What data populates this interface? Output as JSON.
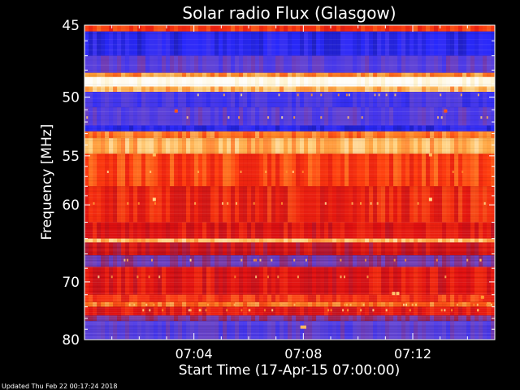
{
  "chart_data": {
    "type": "heatmap",
    "title": "Solar radio Flux (Glasgow)",
    "xlabel": "Start Time (17-Apr-15 07:00:00)",
    "ylabel": "Frequency [MHz]",
    "x_ticks": [
      "07:04",
      "07:08",
      "07:12"
    ],
    "x_tick_minutes": [
      4,
      8,
      12
    ],
    "x_range_minutes": [
      0,
      15
    ],
    "y_ticks": [
      45,
      50,
      55,
      60,
      70,
      80
    ],
    "y_range": [
      45,
      80
    ],
    "y_scale": "reciprocal",
    "grid": false,
    "colormap": [
      "#10106a",
      "#2a2aff",
      "#6a4ad0",
      "#b01020",
      "#e01010",
      "#ff4010",
      "#ff9a30",
      "#ffe8a0",
      "#ffffff"
    ],
    "bands": [
      {
        "mhz": [
          45.0,
          45.4
        ],
        "level": 0.6
      },
      {
        "mhz": [
          45.4,
          47.0
        ],
        "level": 0.12
      },
      {
        "mhz": [
          47.0,
          48.2
        ],
        "level": 0.22
      },
      {
        "mhz": [
          48.2,
          48.5
        ],
        "level": 0.75
      },
      {
        "mhz": [
          48.5,
          49.2
        ],
        "level": 0.98
      },
      {
        "mhz": [
          49.2,
          49.6
        ],
        "level": 0.8
      },
      {
        "mhz": [
          49.6,
          50.8
        ],
        "level": 0.18
      },
      {
        "mhz": [
          50.8,
          52.3
        ],
        "level": 0.22
      },
      {
        "mhz": [
          52.3,
          52.8
        ],
        "level": 0.12
      },
      {
        "mhz": [
          52.8,
          53.4
        ],
        "level": 0.7
      },
      {
        "mhz": [
          53.4,
          54.8
        ],
        "level": 0.8
      },
      {
        "mhz": [
          54.8,
          58.0
        ],
        "level": 0.62
      },
      {
        "mhz": [
          58.0,
          62.0
        ],
        "level": 0.55
      },
      {
        "mhz": [
          62.0,
          64.0
        ],
        "level": 0.5
      },
      {
        "mhz": [
          64.0,
          64.5
        ],
        "level": 0.8
      },
      {
        "mhz": [
          64.5,
          66.2
        ],
        "level": 0.45
      },
      {
        "mhz": [
          66.2,
          67.8
        ],
        "level": 0.28
      },
      {
        "mhz": [
          67.8,
          72.0
        ],
        "level": 0.5
      },
      {
        "mhz": [
          72.0,
          73.2
        ],
        "level": 0.58
      },
      {
        "mhz": [
          73.2,
          74.0
        ],
        "level": 0.7
      },
      {
        "mhz": [
          74.0,
          75.5
        ],
        "level": 0.5
      },
      {
        "mhz": [
          75.5,
          76.5
        ],
        "level": 0.3
      },
      {
        "mhz": [
          76.5,
          80.0
        ],
        "level": 0.22
      }
    ]
  },
  "footer": {
    "updated": "Updated Thu Feb 22 00:17:24 2018"
  }
}
